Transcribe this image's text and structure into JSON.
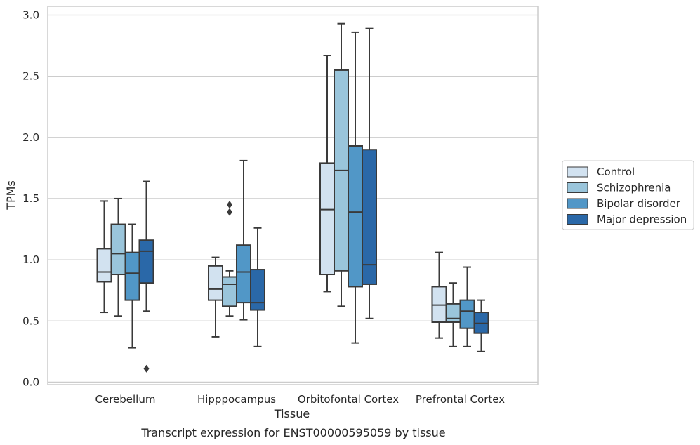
{
  "chart_data": {
    "type": "box",
    "xlabel": "Tissue",
    "ylabel": "TPMs",
    "caption": "Transcript expression for ENST00000595059 by tissue",
    "ylim": [
      -0.04,
      3.07
    ],
    "yticks": [
      "0.0",
      "0.5",
      "1.0",
      "1.5",
      "2.0",
      "2.5",
      "3.0"
    ],
    "grid": "horizontal",
    "legend_position": "right",
    "categories": [
      "Cerebellum",
      "Hipppocampus",
      "Orbitofontal Cortex",
      "Prefrontal Cortex"
    ],
    "colors": {
      "Control": "#d2e2f0",
      "Schizophrenia": "#9ac5db",
      "Bipolar disorder": "#5197c7",
      "Major depression": "#2a68a8",
      "line": "#3a3a3a",
      "grid": "#cccccc",
      "frame": "#cccccc"
    },
    "series": [
      {
        "name": "Control",
        "boxes": [
          {
            "min": 0.57,
            "q1": 0.82,
            "median": 0.9,
            "q3": 1.09,
            "max": 1.48,
            "outliers": []
          },
          {
            "min": 0.37,
            "q1": 0.67,
            "median": 0.76,
            "q3": 0.95,
            "max": 1.02,
            "outliers": []
          },
          {
            "min": 0.74,
            "q1": 0.88,
            "median": 1.41,
            "q3": 1.79,
            "max": 2.67,
            "outliers": []
          },
          {
            "min": 0.36,
            "q1": 0.49,
            "median": 0.63,
            "q3": 0.78,
            "max": 1.06,
            "outliers": []
          }
        ]
      },
      {
        "name": "Schizophrenia",
        "boxes": [
          {
            "min": 0.54,
            "q1": 0.88,
            "median": 1.05,
            "q3": 1.29,
            "max": 1.5,
            "outliers": []
          },
          {
            "min": 0.54,
            "q1": 0.62,
            "median": 0.8,
            "q3": 0.86,
            "max": 0.91,
            "outliers": [
              1.45,
              1.39
            ]
          },
          {
            "min": 0.62,
            "q1": 0.91,
            "median": 1.73,
            "q3": 2.55,
            "max": 2.93,
            "outliers": []
          },
          {
            "min": 0.29,
            "q1": 0.49,
            "median": 0.52,
            "q3": 0.64,
            "max": 0.81,
            "outliers": []
          }
        ]
      },
      {
        "name": "Bipolar disorder",
        "boxes": [
          {
            "min": 0.28,
            "q1": 0.67,
            "median": 0.89,
            "q3": 1.06,
            "max": 1.29,
            "outliers": []
          },
          {
            "min": 0.51,
            "q1": 0.65,
            "median": 0.9,
            "q3": 1.12,
            "max": 1.81,
            "outliers": []
          },
          {
            "min": 0.32,
            "q1": 0.78,
            "median": 1.39,
            "q3": 1.93,
            "max": 2.86,
            "outliers": []
          },
          {
            "min": 0.29,
            "q1": 0.44,
            "median": 0.58,
            "q3": 0.67,
            "max": 0.94,
            "outliers": []
          }
        ]
      },
      {
        "name": "Major depression",
        "boxes": [
          {
            "min": 0.58,
            "q1": 0.81,
            "median": 1.07,
            "q3": 1.16,
            "max": 1.64,
            "outliers": [
              0.11
            ]
          },
          {
            "min": 0.29,
            "q1": 0.59,
            "median": 0.65,
            "q3": 0.92,
            "max": 1.26,
            "outliers": []
          },
          {
            "min": 0.52,
            "q1": 0.8,
            "median": 0.96,
            "q3": 1.9,
            "max": 2.89,
            "outliers": []
          },
          {
            "min": 0.25,
            "q1": 0.4,
            "median": 0.48,
            "q3": 0.57,
            "max": 0.67,
            "outliers": []
          }
        ]
      }
    ]
  }
}
